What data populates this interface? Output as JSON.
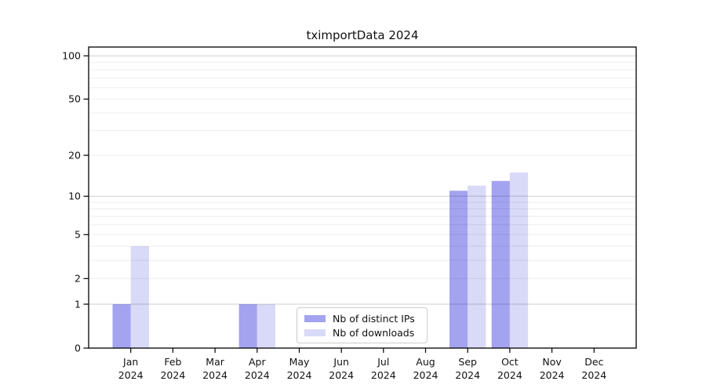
{
  "figure": {
    "background": "#ffffff"
  },
  "chart_data": {
    "type": "bar",
    "title": "tximportData 2024",
    "xlabel": "",
    "ylabel": "",
    "year_suffix": "2024",
    "categories": [
      "Jan",
      "Feb",
      "Mar",
      "Apr",
      "May",
      "Jun",
      "Jul",
      "Aug",
      "Sep",
      "Oct",
      "Nov",
      "Dec"
    ],
    "series": [
      {
        "name": "Nb of distinct IPs",
        "color": "#a3a3f0",
        "values": [
          1,
          0,
          0,
          1,
          0,
          0,
          0,
          0,
          11,
          13,
          0,
          0
        ]
      },
      {
        "name": "Nb of downloads",
        "color": "#d9d9f8",
        "values": [
          4,
          0,
          0,
          1,
          0,
          0,
          0,
          0,
          12,
          15,
          0,
          0
        ]
      }
    ],
    "yscale": "log1p",
    "ylim": [
      0,
      115
    ],
    "yticks": [
      0,
      1,
      2,
      5,
      10,
      20,
      50,
      100
    ],
    "gridlines_major": [
      1,
      10,
      100
    ],
    "gridlines_minor": [
      2,
      3,
      4,
      5,
      6,
      7,
      8,
      9,
      20,
      30,
      40,
      50,
      60,
      70,
      80,
      90
    ],
    "grid": true,
    "legend_position": "lower center"
  }
}
